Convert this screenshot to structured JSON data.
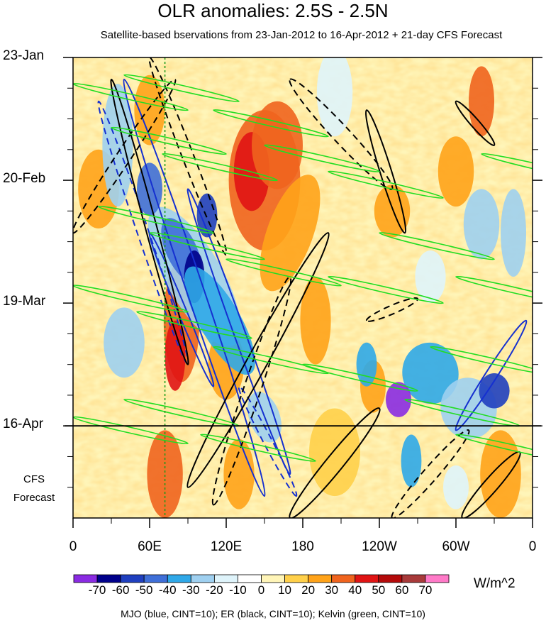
{
  "chart_data": {
    "type": "heatmap",
    "title": "OLR anomalies: 2.5S - 2.5N",
    "subtitle": "Satellite-based bservations from 23-Jan-2012 to 16-Apr-2012 + 21-day CFS Forecast",
    "x_axis": {
      "ticks": [
        "0",
        "60E",
        "120E",
        "180",
        "120W",
        "60W",
        "0"
      ],
      "range_deg_east": [
        0,
        360
      ]
    },
    "y_axis": {
      "ticks": [
        "23-Jan",
        "20-Feb",
        "19-Mar",
        "16-Apr"
      ],
      "range_days": [
        0,
        105
      ],
      "observation_end_day": 84
    },
    "forecast_label": [
      "CFS",
      "Forecast"
    ],
    "colorbar": {
      "units": "W/m^2",
      "tick_labels": [
        "-70",
        "-60",
        "-50",
        "-40",
        "-30",
        "-20",
        "-10",
        "0",
        "10",
        "20",
        "30",
        "40",
        "50",
        "60",
        "70"
      ],
      "colors": [
        "#8a2be2",
        "#00008b",
        "#1f3fbf",
        "#3f6fd8",
        "#2fa8e8",
        "#9fd0f0",
        "#dff4fb",
        "#ffffff",
        "#fff5b8",
        "#ffd04a",
        "#ffa319",
        "#f0641e",
        "#e01414",
        "#b40a0a",
        "#a83a3a",
        "#ff7ac8"
      ]
    },
    "overlay_note": "MJO (blue, CINT=10); ER (black, CINT=10); Kelvin (green, CINT=10)",
    "reference_line": {
      "longitude_deg": 72,
      "color": "green"
    },
    "pattern": {
      "suppressed_convection": [
        "west Pacific 120E-180 Feb-Mar (up to +50)",
        "Indian Ocean 60E-80E Mar-Apr"
      ],
      "enhanced_convection": [
        "Maritime Continent 60E-150E Feb-Mar (down to -70)",
        "East Pacific / Atlantic 90W-0 Mar-Apr"
      ]
    }
  }
}
